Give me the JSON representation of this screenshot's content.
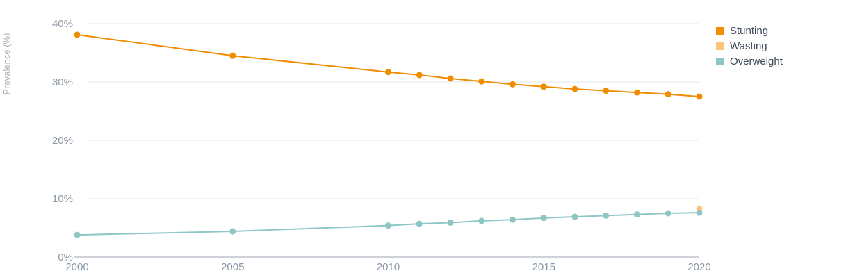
{
  "chart_data": {
    "type": "line",
    "xlabel": "",
    "ylabel": "Prevalence (%)",
    "ylim": [
      0,
      40
    ],
    "y_ticks": [
      "0%",
      "10%",
      "20%",
      "30%",
      "40%"
    ],
    "xlim": [
      2000,
      2020
    ],
    "x_ticks": [
      "2000",
      "2005",
      "2010",
      "2015",
      "2020"
    ],
    "grid": true,
    "legend_position": "top-right",
    "series": [
      {
        "name": "Stunting",
        "color": "#f08c00",
        "x": [
          2000,
          2005,
          2010,
          2011,
          2012,
          2013,
          2014,
          2015,
          2016,
          2017,
          2018,
          2019,
          2020
        ],
        "values": [
          38.1,
          34.5,
          31.7,
          31.2,
          30.6,
          30.1,
          29.6,
          29.2,
          28.8,
          28.5,
          28.2,
          27.9,
          27.5
        ]
      },
      {
        "name": "Wasting",
        "color": "#fdc57a",
        "x": [
          2020
        ],
        "values": [
          8.3
        ]
      },
      {
        "name": "Overweight",
        "color": "#8ec6c5",
        "x": [
          2000,
          2005,
          2010,
          2011,
          2012,
          2013,
          2014,
          2015,
          2016,
          2017,
          2018,
          2019,
          2020
        ],
        "values": [
          3.8,
          4.4,
          5.4,
          5.7,
          5.9,
          6.2,
          6.4,
          6.7,
          6.9,
          7.1,
          7.3,
          7.5,
          7.6
        ]
      }
    ]
  }
}
